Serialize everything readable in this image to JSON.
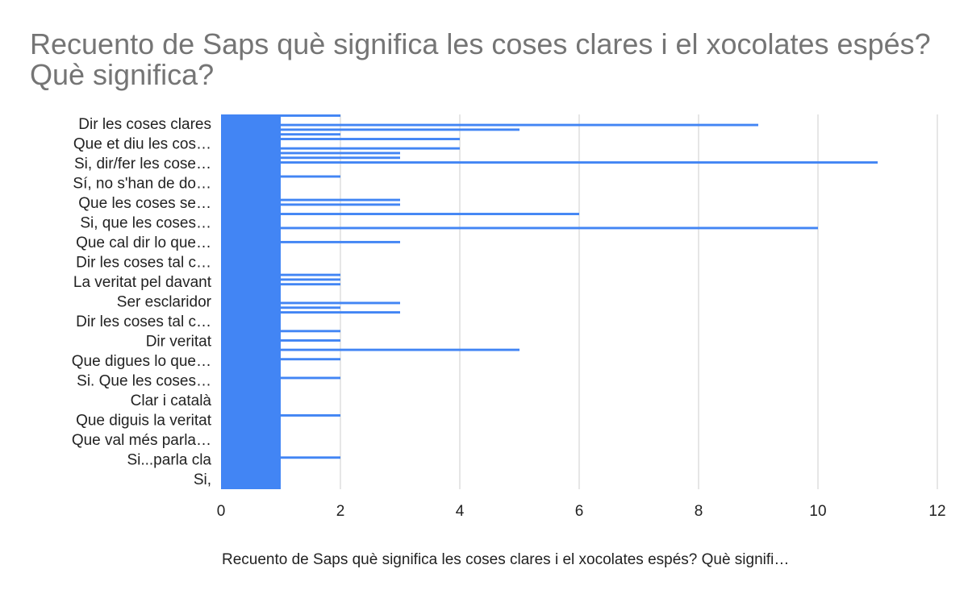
{
  "chart_data": {
    "type": "bar",
    "orientation": "horizontal",
    "title": "Recuento de Saps què significa les coses clares i el xocolates espés? Què significa?",
    "xlabel": "Recuento de Saps què significa les coses clares i el xocolates espés? Què signifi…",
    "ylabel": "",
    "xlim": [
      0,
      12
    ],
    "x_ticks": [
      0,
      2,
      4,
      6,
      8,
      10,
      12
    ],
    "grid": true,
    "bar_color": "#4285f4",
    "categories_shown": [
      "Dir les coses clares",
      "Que et diu les cos…",
      "Si, dir/fer les cose…",
      "Sí, no s'han de do…",
      "Que les coses se…",
      "Si, que les coses…",
      "Que cal dir lo que…",
      "Dir les coses tal c…",
      "La veritat pel davant",
      "Ser esclaridor",
      "Dir les coses tal c…",
      "Dir veritat",
      "Que digues lo que…",
      "Si. Que les coses…",
      "Clar i català",
      "Que diguis la veritat",
      "Que val més parla…",
      "Si...parla cla",
      "Si,"
    ],
    "values": [
      2,
      1,
      9,
      5,
      2,
      4,
      1,
      4,
      3,
      3,
      11,
      1,
      1,
      2,
      1,
      1,
      1,
      1,
      3,
      3,
      1,
      6,
      1,
      1,
      10,
      1,
      1,
      3,
      1,
      1,
      1,
      1,
      1,
      1,
      2,
      2,
      2,
      1,
      1,
      1,
      3,
      2,
      3,
      1,
      1,
      1,
      2,
      1,
      2,
      1,
      5,
      1,
      2,
      1,
      1,
      1,
      2,
      1,
      1,
      1,
      1,
      1,
      1,
      1,
      2,
      1,
      1,
      1,
      1,
      1,
      1,
      1,
      1,
      2,
      1,
      1,
      1,
      1,
      1,
      1
    ]
  }
}
